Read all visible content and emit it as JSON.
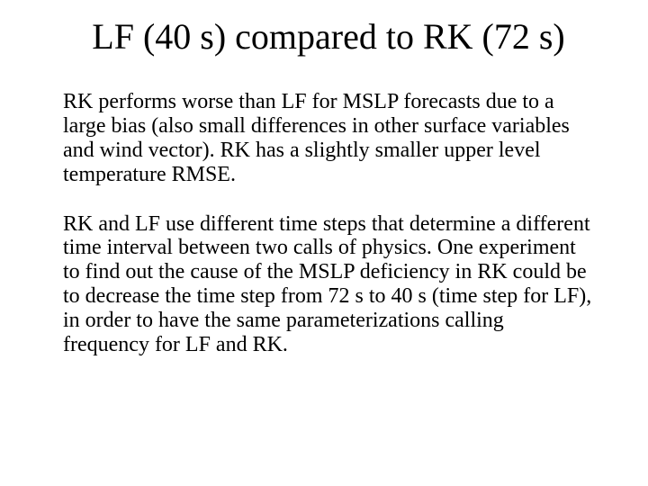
{
  "slide": {
    "title": "LF (40 s) compared to RK (72 s)",
    "paragraph1": "RK performs worse than LF for MSLP forecasts due to a large bias (also small differences in other surface variables and wind vector). RK has a slightly smaller upper level temperature RMSE.",
    "paragraph2": "RK and LF use different time steps that determine a different time interval between two calls of physics. One experiment to find out the cause of the MSLP deficiency in RK could be to decrease the time step from 72 s to 40 s (time step for LF), in order to have the same parameterizations calling frequency for LF and RK.",
    "background_color": "#ffffff",
    "text_color": "#000000",
    "title_fontsize": 40,
    "body_fontsize": 24,
    "font_family": "Times New Roman"
  }
}
